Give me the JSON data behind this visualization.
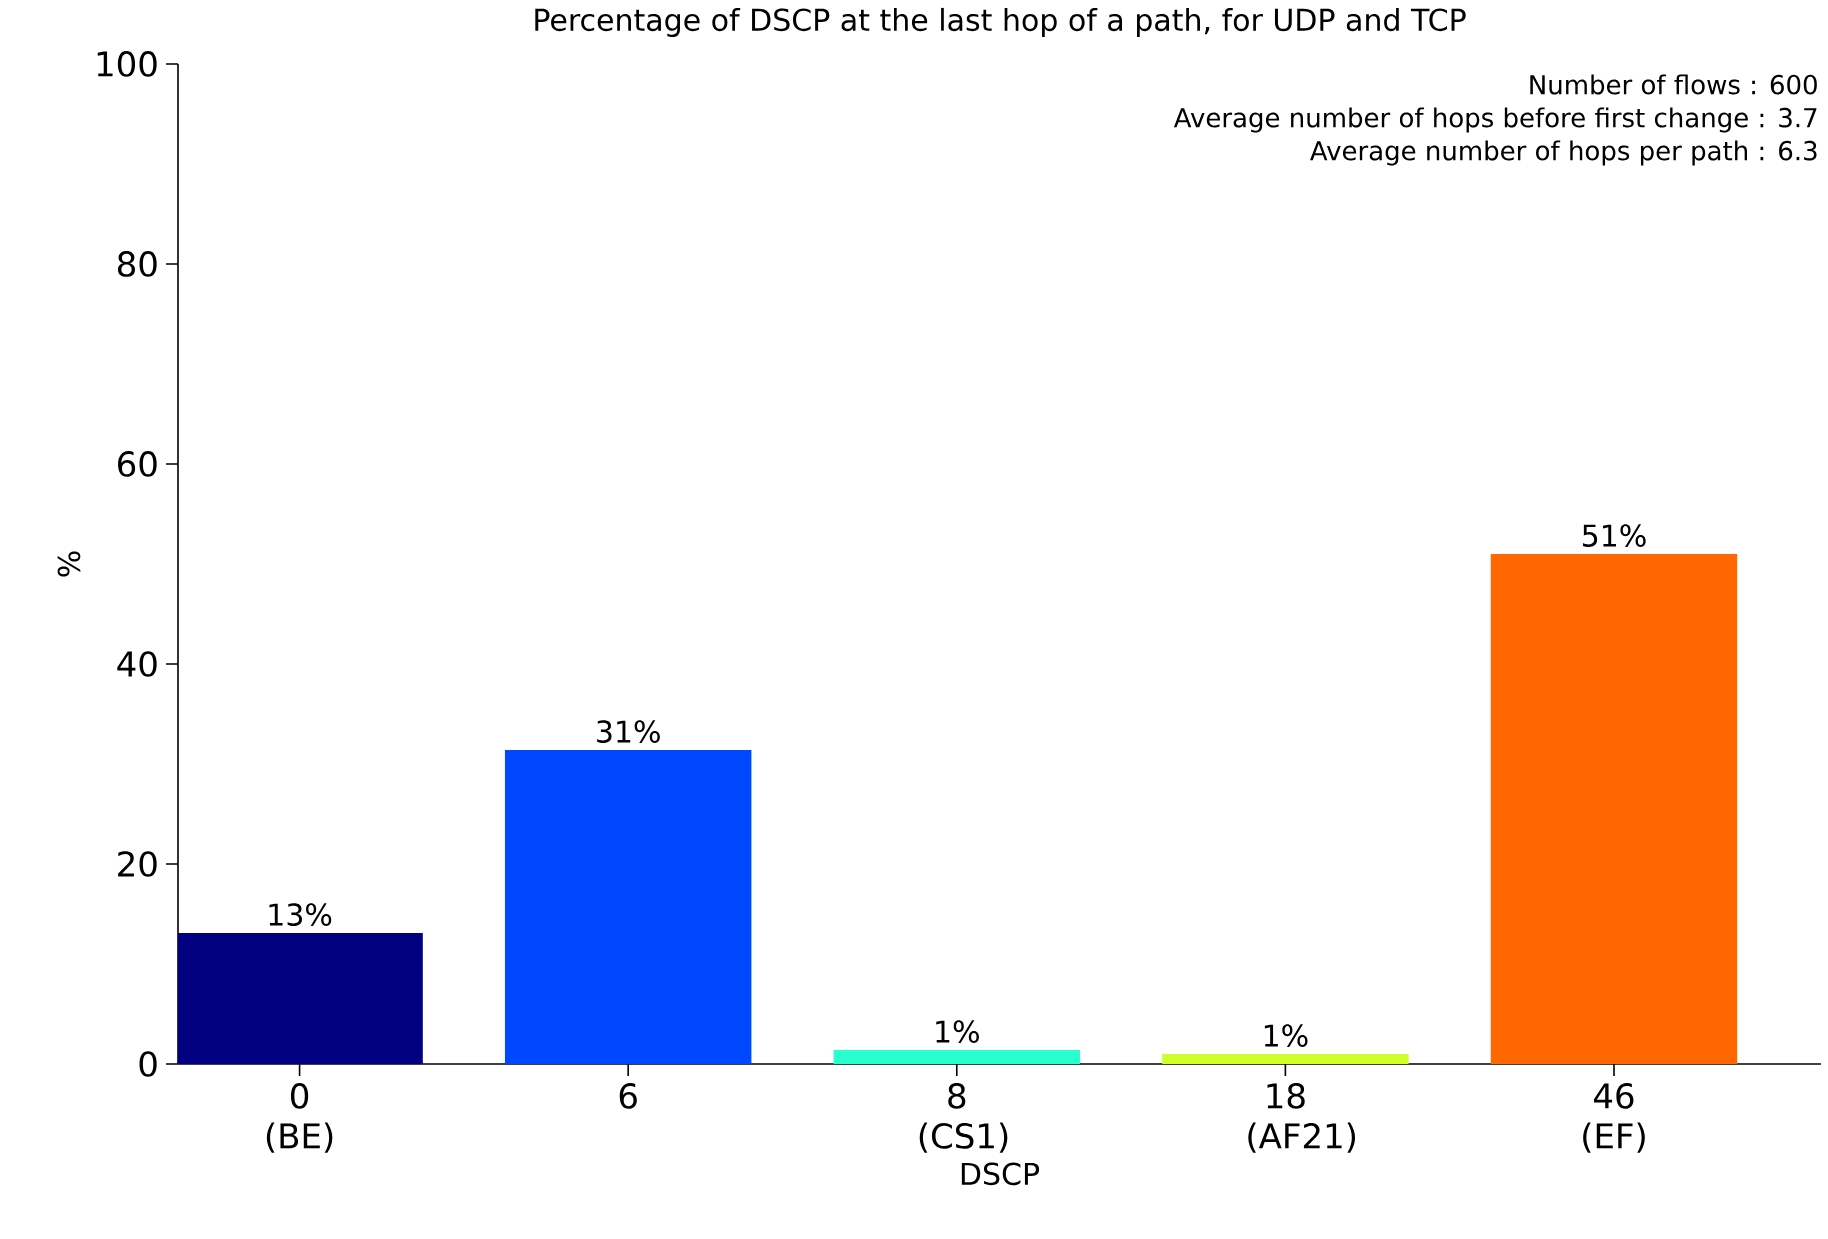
{
  "chart_data": {
    "type": "bar",
    "title": "Percentage of DSCP at the last hop of a path, for UDP and TCP",
    "xlabel": "DSCP",
    "ylabel": "%",
    "categories": [
      "0 (BE)",
      "6",
      "8 (CS1)",
      "18 (AF21)",
      "46 (EF)"
    ],
    "values": [
      13.1,
      31.4,
      1.4,
      1.0,
      51.0
    ],
    "colors": [
      "#000080",
      "#0048ff",
      "#29ffce",
      "#ceff29",
      "#ff6800"
    ],
    "value_labels": [
      "13%",
      "31%",
      "1%",
      "1%",
      "51%"
    ],
    "ylim": [
      0,
      100
    ],
    "yticks": [
      0,
      20,
      40,
      60,
      80,
      100
    ],
    "annotations": [
      "Number of flows : 600",
      "Average number of hops before first change : 3.7",
      "Average number of hops per path : 6.3"
    ],
    "grid": false
  }
}
